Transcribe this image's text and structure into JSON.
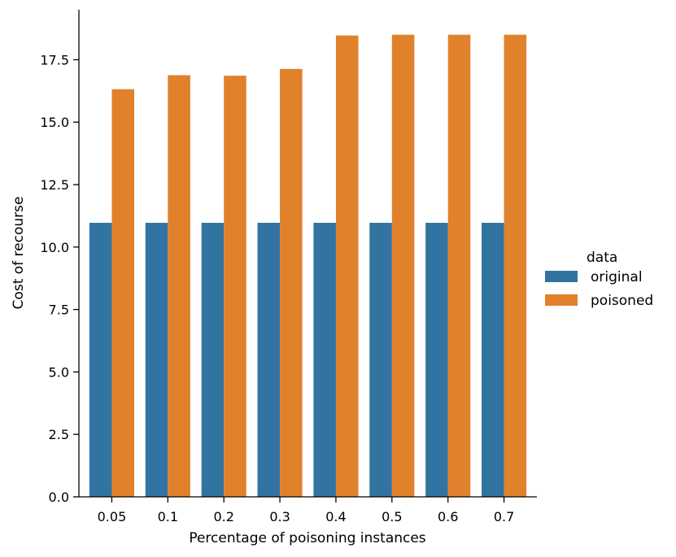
{
  "chart_data": {
    "type": "bar",
    "title": "",
    "xlabel": "Percentage of poisoning instances",
    "ylabel": "Cost of recourse",
    "categories": [
      "0.05",
      "0.1",
      "0.2",
      "0.3",
      "0.4",
      "0.5",
      "0.6",
      "0.7"
    ],
    "series": [
      {
        "name": "original",
        "color": "#3274a1",
        "values": [
          10.97,
          10.97,
          10.97,
          10.97,
          10.97,
          10.97,
          10.97,
          10.97
        ]
      },
      {
        "name": "poisoned",
        "color": "#e1812c",
        "values": [
          16.32,
          16.88,
          16.86,
          17.13,
          18.47,
          18.5,
          18.5,
          18.5
        ]
      }
    ],
    "ylim": [
      0,
      19.5
    ],
    "yticks": [
      "0.0",
      "2.5",
      "5.0",
      "7.5",
      "10.0",
      "12.5",
      "15.0",
      "17.5"
    ],
    "grid": false,
    "legend": {
      "title": "data",
      "placement": "right"
    }
  }
}
